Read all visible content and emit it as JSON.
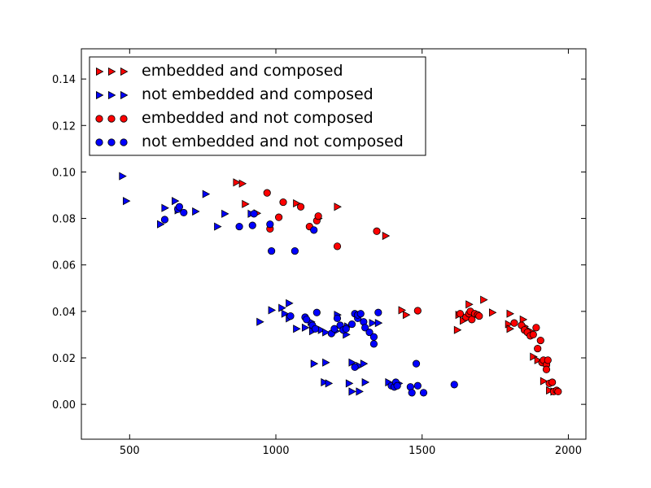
{
  "chart_data": {
    "type": "scatter",
    "title": "",
    "xlabel": "",
    "ylabel": "",
    "xlim": [
      335,
      2060
    ],
    "ylim": [
      -0.015,
      0.153
    ],
    "xticks": [
      500,
      1000,
      1500,
      2000
    ],
    "yticks": [
      0.0,
      0.02,
      0.04,
      0.06,
      0.08,
      0.1,
      0.12,
      0.14
    ],
    "xtick_labels": [
      "500",
      "1000",
      "1500",
      "2000"
    ],
    "ytick_labels": [
      "0.00",
      "0.02",
      "0.04",
      "0.06",
      "0.08",
      "0.10",
      "0.12",
      "0.14"
    ],
    "grid": false,
    "legend_position": "upper-left",
    "colors": {
      "red": "#ff0000",
      "blue": "#0000ff",
      "edge": "#000000"
    },
    "series": [
      {
        "name": "embedded and composed",
        "marker": "triangle-right",
        "color": "#ff0000",
        "points": [
          [
            865,
            0.0955
          ],
          [
            885,
            0.095
          ],
          [
            895,
            0.0862
          ],
          [
            935,
            0.0822
          ],
          [
            1070,
            0.0865
          ],
          [
            1145,
            0.08
          ],
          [
            1210,
            0.085
          ],
          [
            1375,
            0.0725
          ],
          [
            1430,
            0.0405
          ],
          [
            1445,
            0.0385
          ],
          [
            1620,
            0.032
          ],
          [
            1625,
            0.0385
          ],
          [
            1640,
            0.036
          ],
          [
            1660,
            0.043
          ],
          [
            1710,
            0.045
          ],
          [
            1740,
            0.0395
          ],
          [
            1800,
            0.039
          ],
          [
            1795,
            0.0345
          ],
          [
            1800,
            0.0325
          ],
          [
            1845,
            0.0365
          ],
          [
            1850,
            0.0335
          ],
          [
            1870,
            0.0315
          ],
          [
            1880,
            0.0205
          ],
          [
            1895,
            0.019
          ],
          [
            1915,
            0.01
          ],
          [
            1935,
            0.006
          ],
          [
            1950,
            0.0055
          ]
        ]
      },
      {
        "name": "not embedded and composed",
        "marker": "triangle-right",
        "color": "#0000ff",
        "points": [
          [
            475,
            0.0982
          ],
          [
            488,
            0.0875
          ],
          [
            605,
            0.0775
          ],
          [
            620,
            0.0845
          ],
          [
            655,
            0.0875
          ],
          [
            665,
            0.0835
          ],
          [
            725,
            0.083
          ],
          [
            760,
            0.0905
          ],
          [
            800,
            0.0765
          ],
          [
            825,
            0.082
          ],
          [
            915,
            0.082
          ],
          [
            945,
            0.0355
          ],
          [
            985,
            0.0405
          ],
          [
            1020,
            0.0415
          ],
          [
            1030,
            0.039
          ],
          [
            1045,
            0.0435
          ],
          [
            1045,
            0.037
          ],
          [
            1070,
            0.0325
          ],
          [
            1100,
            0.033
          ],
          [
            1120,
            0.0355
          ],
          [
            1125,
            0.0315
          ],
          [
            1130,
            0.0175
          ],
          [
            1155,
            0.032
          ],
          [
            1170,
            0.031
          ],
          [
            1170,
            0.018
          ],
          [
            1165,
            0.0095
          ],
          [
            1180,
            0.009
          ],
          [
            1205,
            0.0315
          ],
          [
            1210,
            0.0385
          ],
          [
            1240,
            0.03
          ],
          [
            1245,
            0.0335
          ],
          [
            1250,
            0.009
          ],
          [
            1260,
            0.018
          ],
          [
            1260,
            0.0055
          ],
          [
            1285,
            0.0165
          ],
          [
            1285,
            0.0055
          ],
          [
            1300,
            0.0175
          ],
          [
            1305,
            0.0095
          ],
          [
            1330,
            0.035
          ],
          [
            1350,
            0.035
          ],
          [
            1385,
            0.0095
          ],
          [
            1420,
            0.009
          ]
        ]
      },
      {
        "name": "embedded and not composed",
        "marker": "circle",
        "color": "#ff0000",
        "points": [
          [
            970,
            0.091
          ],
          [
            980,
            0.0755
          ],
          [
            1010,
            0.0805
          ],
          [
            1025,
            0.087
          ],
          [
            1085,
            0.085
          ],
          [
            1115,
            0.0765
          ],
          [
            1140,
            0.079
          ],
          [
            1145,
            0.081
          ],
          [
            1210,
            0.068
          ],
          [
            1345,
            0.0745
          ],
          [
            1485,
            0.0403
          ],
          [
            1630,
            0.039
          ],
          [
            1650,
            0.0375
          ],
          [
            1660,
            0.039
          ],
          [
            1665,
            0.04
          ],
          [
            1670,
            0.0365
          ],
          [
            1680,
            0.039
          ],
          [
            1690,
            0.0385
          ],
          [
            1695,
            0.038
          ],
          [
            1815,
            0.035
          ],
          [
            1840,
            0.034
          ],
          [
            1850,
            0.032
          ],
          [
            1860,
            0.031
          ],
          [
            1870,
            0.0295
          ],
          [
            1880,
            0.03
          ],
          [
            1890,
            0.033
          ],
          [
            1895,
            0.024
          ],
          [
            1905,
            0.0275
          ],
          [
            1910,
            0.018
          ],
          [
            1915,
            0.019
          ],
          [
            1925,
            0.017
          ],
          [
            1925,
            0.015
          ],
          [
            1930,
            0.019
          ],
          [
            1935,
            0.009
          ],
          [
            1945,
            0.0095
          ],
          [
            1950,
            0.0055
          ],
          [
            1960,
            0.006
          ],
          [
            1965,
            0.0055
          ]
        ]
      },
      {
        "name": "not embedded and not composed",
        "marker": "circle",
        "color": "#0000ff",
        "points": [
          [
            620,
            0.0795
          ],
          [
            665,
            0.084
          ],
          [
            670,
            0.085
          ],
          [
            685,
            0.0825
          ],
          [
            875,
            0.0765
          ],
          [
            920,
            0.077
          ],
          [
            925,
            0.082
          ],
          [
            980,
            0.0775
          ],
          [
            985,
            0.066
          ],
          [
            1065,
            0.066
          ],
          [
            1050,
            0.038
          ],
          [
            1100,
            0.0375
          ],
          [
            1105,
            0.0365
          ],
          [
            1125,
            0.034
          ],
          [
            1130,
            0.075
          ],
          [
            1135,
            0.0325
          ],
          [
            1140,
            0.0395
          ],
          [
            1190,
            0.0305
          ],
          [
            1200,
            0.0325
          ],
          [
            1210,
            0.037
          ],
          [
            1220,
            0.034
          ],
          [
            1230,
            0.032
          ],
          [
            1240,
            0.0325
          ],
          [
            1260,
            0.0345
          ],
          [
            1270,
            0.039
          ],
          [
            1270,
            0.016
          ],
          [
            1280,
            0.037
          ],
          [
            1280,
            0.0385
          ],
          [
            1290,
            0.039
          ],
          [
            1300,
            0.0355
          ],
          [
            1305,
            0.033
          ],
          [
            1320,
            0.031
          ],
          [
            1335,
            0.029
          ],
          [
            1335,
            0.026
          ],
          [
            1350,
            0.0395
          ],
          [
            1395,
            0.008
          ],
          [
            1405,
            0.0075
          ],
          [
            1410,
            0.0095
          ],
          [
            1415,
            0.008
          ],
          [
            1460,
            0.0075
          ],
          [
            1465,
            0.005
          ],
          [
            1480,
            0.0175
          ],
          [
            1485,
            0.008
          ],
          [
            1505,
            0.005
          ],
          [
            1610,
            0.0085
          ]
        ]
      }
    ]
  }
}
